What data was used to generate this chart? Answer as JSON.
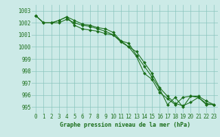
{
  "line1": [
    1002.6,
    1002.0,
    1002.0,
    1002.0,
    1002.3,
    1002.0,
    1001.8,
    1001.7,
    1001.5,
    1001.3,
    1001.0,
    1000.5,
    1000.3,
    999.3,
    998.4,
    997.5,
    996.5,
    995.2,
    995.8,
    995.0,
    995.9,
    995.8,
    995.3,
    995.2
  ],
  "line2": [
    1002.6,
    1002.0,
    1002.0,
    1002.2,
    1002.5,
    1002.2,
    1001.9,
    1001.8,
    1001.6,
    1001.5,
    1001.2,
    1000.5,
    1000.0,
    999.2,
    997.8,
    997.3,
    996.2,
    995.7,
    995.2,
    995.8,
    995.9,
    995.9,
    995.5,
    995.2
  ],
  "line3": [
    1002.6,
    1002.0,
    1002.0,
    1002.2,
    1002.5,
    1001.8,
    1001.5,
    1001.4,
    1001.3,
    1001.1,
    1001.0,
    1000.4,
    1000.0,
    999.6,
    998.7,
    997.8,
    996.6,
    995.9,
    995.3,
    995.1,
    995.4,
    995.8,
    995.2,
    995.2
  ],
  "x": [
    0,
    1,
    2,
    3,
    4,
    5,
    6,
    7,
    8,
    9,
    10,
    11,
    12,
    13,
    14,
    15,
    16,
    17,
    18,
    19,
    20,
    21,
    22,
    23
  ],
  "ylim": [
    994.5,
    1003.5
  ],
  "yticks": [
    995,
    996,
    997,
    998,
    999,
    1000,
    1001,
    1002,
    1003
  ],
  "xticks": [
    0,
    1,
    2,
    3,
    4,
    5,
    6,
    7,
    8,
    9,
    10,
    11,
    12,
    13,
    14,
    15,
    16,
    17,
    18,
    19,
    20,
    21,
    22,
    23
  ],
  "line_color": "#1a6e1a",
  "bg_color": "#cceae7",
  "grid_color": "#88c4bc",
  "xlabel": "Graphe pression niveau de la mer (hPa)",
  "xlabel_fontsize": 6.0,
  "tick_fontsize": 5.5,
  "marker": "D",
  "markersize": 2.0,
  "linewidth": 0.8
}
